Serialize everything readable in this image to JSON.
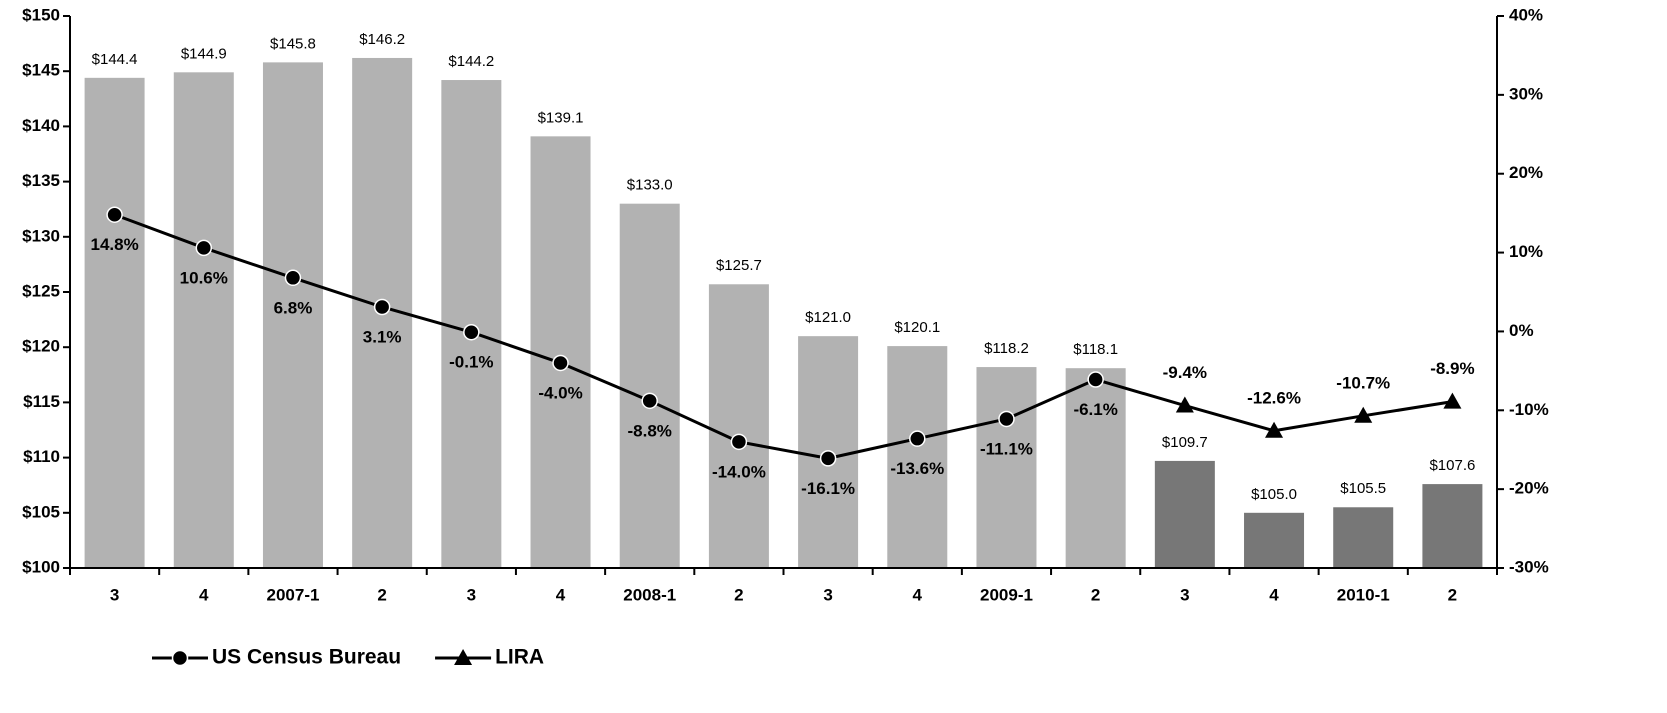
{
  "chart_data": {
    "type": "combo",
    "categories": [
      "3",
      "4",
      "2007-1",
      "2",
      "3",
      "4",
      "2008-1",
      "2",
      "3",
      "4",
      "2009-1",
      "2",
      "3",
      "4",
      "2010-1",
      "2"
    ],
    "series": [
      {
        "type": "bar",
        "values": [
          144.4,
          144.9,
          145.8,
          146.2,
          144.2,
          139.1,
          133.0,
          125.7,
          121.0,
          120.1,
          118.2,
          118.1,
          109.7,
          105.0,
          105.5,
          107.6
        ],
        "value_labels": [
          "$144.4",
          "$144.9",
          "$145.8",
          "$146.2",
          "$144.2",
          "$139.1",
          "$133.0",
          "$125.7",
          "$121.0",
          "$120.1",
          "$118.2",
          "$118.1",
          "$109.7",
          "$105.0",
          "$105.5",
          "$107.6"
        ],
        "colors": [
          "#b2b2b2",
          "#b2b2b2",
          "#b2b2b2",
          "#b2b2b2",
          "#b2b2b2",
          "#b2b2b2",
          "#b2b2b2",
          "#b2b2b2",
          "#b2b2b2",
          "#b2b2b2",
          "#b2b2b2",
          "#b2b2b2",
          "#777777",
          "#777777",
          "#777777",
          "#777777"
        ]
      },
      {
        "type": "line",
        "name": "US Census Bureau",
        "color": "#000000",
        "marker": "circle",
        "axis": "y2",
        "label_position": "below",
        "values": [
          14.8,
          10.6,
          6.8,
          3.1,
          -0.1,
          -4.0,
          -8.8,
          -14.0,
          -16.1,
          -13.6,
          -11.1,
          -6.1,
          null,
          null,
          null,
          null
        ],
        "value_labels": [
          "14.8%",
          "10.6%",
          "6.8%",
          "3.1%",
          "-0.1%",
          "-4.0%",
          "-8.8%",
          "-14.0%",
          "-16.1%",
          "-13.6%",
          "-11.1%",
          "-6.1%",
          null,
          null,
          null,
          null
        ]
      },
      {
        "type": "line",
        "name": "LIRA",
        "color": "#000000",
        "marker": "triangle",
        "axis": "y2",
        "label_position": "above",
        "values": [
          null,
          null,
          null,
          null,
          null,
          null,
          null,
          null,
          null,
          null,
          null,
          null,
          -9.4,
          -12.6,
          -10.7,
          -8.9
        ],
        "value_labels": [
          null,
          null,
          null,
          null,
          null,
          null,
          null,
          null,
          null,
          null,
          null,
          null,
          "-9.4%",
          "-12.6%",
          "-10.7%",
          "-8.9%"
        ]
      }
    ],
    "ylim": [
      100,
      150
    ],
    "yticks": [
      {
        "value": 100,
        "label": "$100"
      },
      {
        "value": 105,
        "label": "$105"
      },
      {
        "value": 110,
        "label": "$110"
      },
      {
        "value": 115,
        "label": "$115"
      },
      {
        "value": 120,
        "label": "$120"
      },
      {
        "value": 125,
        "label": "$125"
      },
      {
        "value": 130,
        "label": "$130"
      },
      {
        "value": 135,
        "label": "$135"
      },
      {
        "value": 140,
        "label": "$140"
      },
      {
        "value": 145,
        "label": "$145"
      },
      {
        "value": 150,
        "label": "$150"
      }
    ],
    "y2lim": [
      -30,
      40
    ],
    "y2ticks": [
      {
        "value": -30,
        "label": "-30%"
      },
      {
        "value": -20,
        "label": "-20%"
      },
      {
        "value": -10,
        "label": "-10%"
      },
      {
        "value": 0,
        "label": "0%"
      },
      {
        "value": 10,
        "label": "10%"
      },
      {
        "value": 20,
        "label": "20%"
      },
      {
        "value": 30,
        "label": "30%"
      },
      {
        "value": 40,
        "label": "40%"
      }
    ],
    "legend": "bottom-left"
  }
}
